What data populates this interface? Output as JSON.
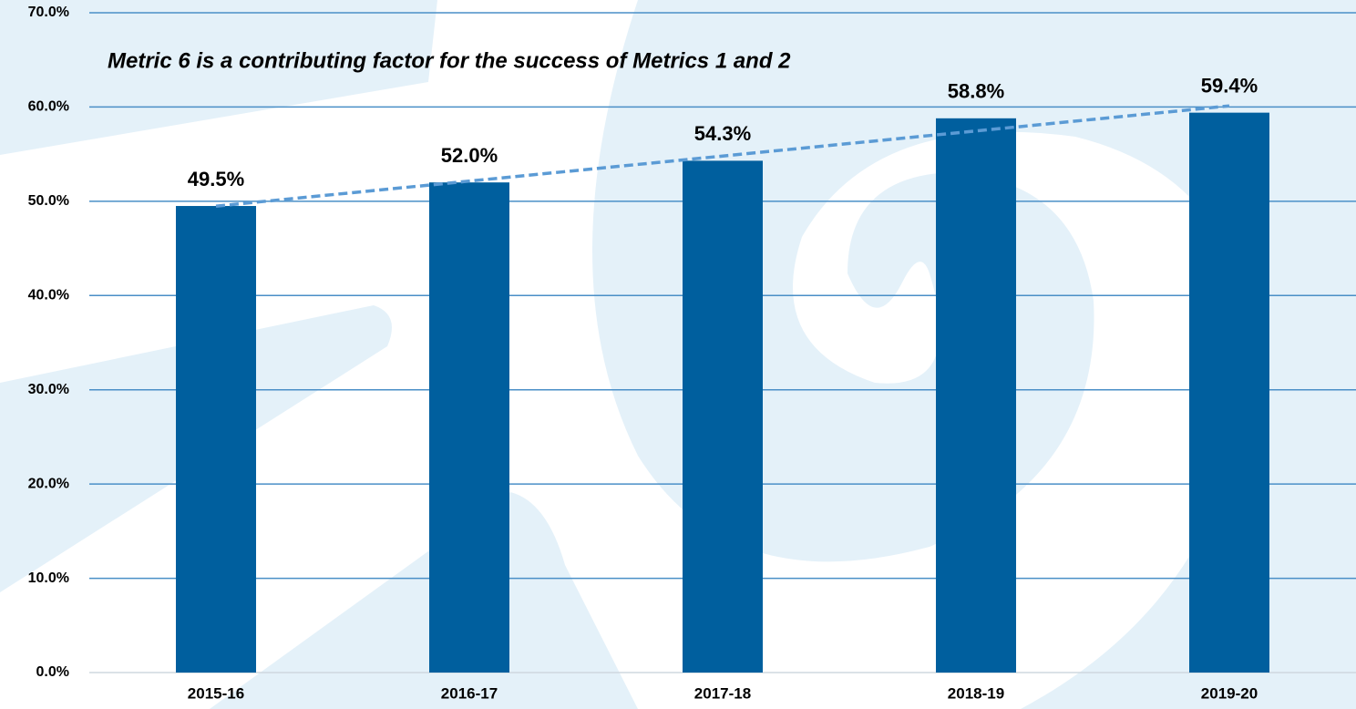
{
  "chart_data": {
    "type": "bar",
    "title": "Metric 6 is a contributing factor for the success of Metrics 1 and 2",
    "categories": [
      "2015-16",
      "2016-17",
      "2017-18",
      "2018-19",
      "2019-20"
    ],
    "values": [
      49.5,
      52.0,
      54.3,
      58.8,
      59.4
    ],
    "value_labels": [
      "49.5%",
      "52.0%",
      "54.3%",
      "58.8%",
      "59.4%"
    ],
    "color": "#005f9e",
    "trendline": "linear",
    "trendline_color": "#5b9bd5",
    "ylim": [
      0,
      70
    ],
    "yticks": [
      {
        "value": 0,
        "label": "0.0%"
      },
      {
        "value": 10,
        "label": "10.0%"
      },
      {
        "value": 20,
        "label": "20.0%"
      },
      {
        "value": 30,
        "label": "30.0%"
      },
      {
        "value": 40,
        "label": "40.0%"
      },
      {
        "value": 50,
        "label": "50.0%"
      },
      {
        "value": 60,
        "label": "60.0%"
      },
      {
        "value": 70,
        "label": "70.0%"
      }
    ],
    "grid": true
  }
}
